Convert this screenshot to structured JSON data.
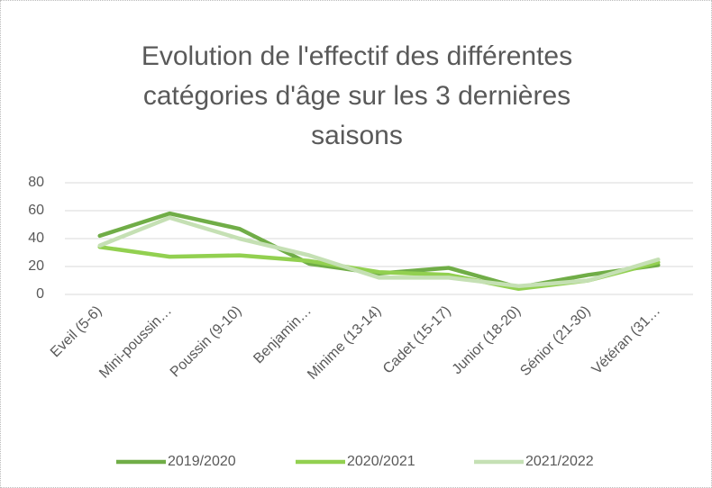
{
  "chart_data": {
    "type": "line",
    "title": "Evolution de l'effectif des différentes catégories d'âge sur les 3 dernières saisons",
    "categories": [
      "Eveil (5-6)",
      "Mini-poussin…",
      "Poussin (9-10)",
      "Benjamin…",
      "Minime (13-14)",
      "Cadet (15-17)",
      "Junior (18-20)",
      "Sénior (21-30)",
      "Vétéran (31…"
    ],
    "series": [
      {
        "name": "2019/2020",
        "color": "#70ad47",
        "values": [
          42,
          58,
          47,
          22,
          15,
          19,
          5,
          14,
          21
        ]
      },
      {
        "name": "2020/2021",
        "color": "#92d050",
        "values": [
          34,
          27,
          28,
          24,
          16,
          14,
          4,
          10,
          23
        ]
      },
      {
        "name": "2021/2022",
        "color": "#c5e0b4",
        "values": [
          35,
          55,
          40,
          28,
          12,
          12,
          6,
          10,
          25
        ]
      }
    ],
    "ylim": [
      0,
      80
    ],
    "yticks": [
      0,
      20,
      40,
      60,
      80
    ],
    "grid": true,
    "legend": "bottom"
  }
}
